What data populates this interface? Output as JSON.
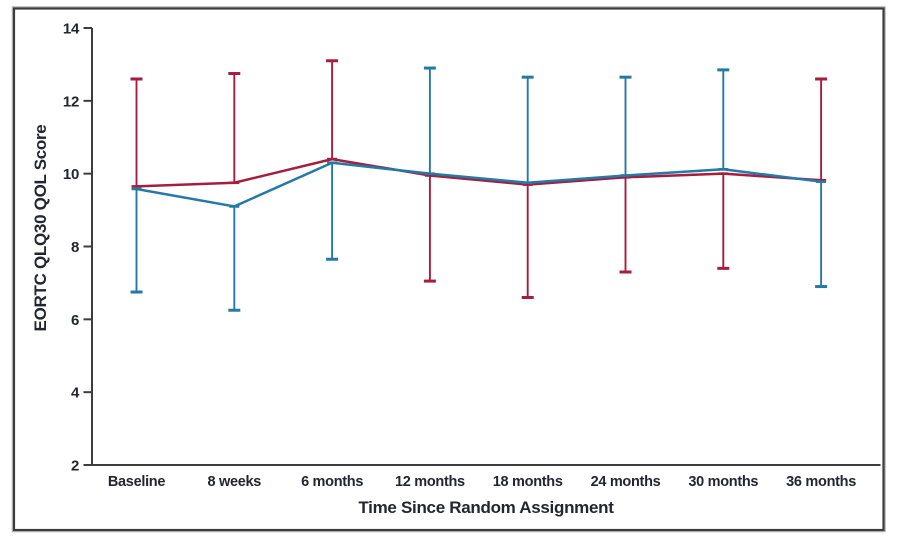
{
  "figure": {
    "frame_color": "#3d3d3d",
    "frame_halo_color": "#b8b8b8",
    "background": "#ffffff",
    "text_color": "#23262e"
  },
  "chart_data": {
    "type": "line",
    "title": "",
    "xlabel": "Time Since Random Assignment",
    "ylabel": "EORTC QLQ30 QOL Score",
    "categories": [
      "Baseline",
      "8 weeks",
      "6 months",
      "12 months",
      "18 months",
      "24 months",
      "30 months",
      "36 months"
    ],
    "yticks": [
      2,
      4,
      6,
      8,
      10,
      12,
      14
    ],
    "ylim": [
      2,
      14
    ],
    "grid": false,
    "legend": "none",
    "series": [
      {
        "name": "red-series",
        "color": "#A51E3D",
        "values": [
          9.65,
          9.75,
          10.4,
          9.95,
          9.7,
          9.9,
          10.0,
          9.82
        ],
        "error_bar_direction": [
          "up",
          "up",
          "up",
          "down",
          "down",
          "down",
          "down",
          "up"
        ],
        "error_bar_end": [
          12.6,
          12.75,
          13.1,
          7.05,
          6.6,
          7.3,
          7.4,
          12.6
        ]
      },
      {
        "name": "blue-series",
        "color": "#2579A7",
        "values": [
          9.58,
          9.1,
          10.3,
          10.0,
          9.75,
          9.95,
          10.12,
          9.78
        ],
        "error_bar_direction": [
          "down",
          "down",
          "down",
          "up",
          "up",
          "up",
          "up",
          "down"
        ],
        "error_bar_end": [
          6.75,
          6.25,
          7.65,
          12.9,
          12.65,
          12.65,
          12.85,
          6.9
        ]
      }
    ]
  }
}
